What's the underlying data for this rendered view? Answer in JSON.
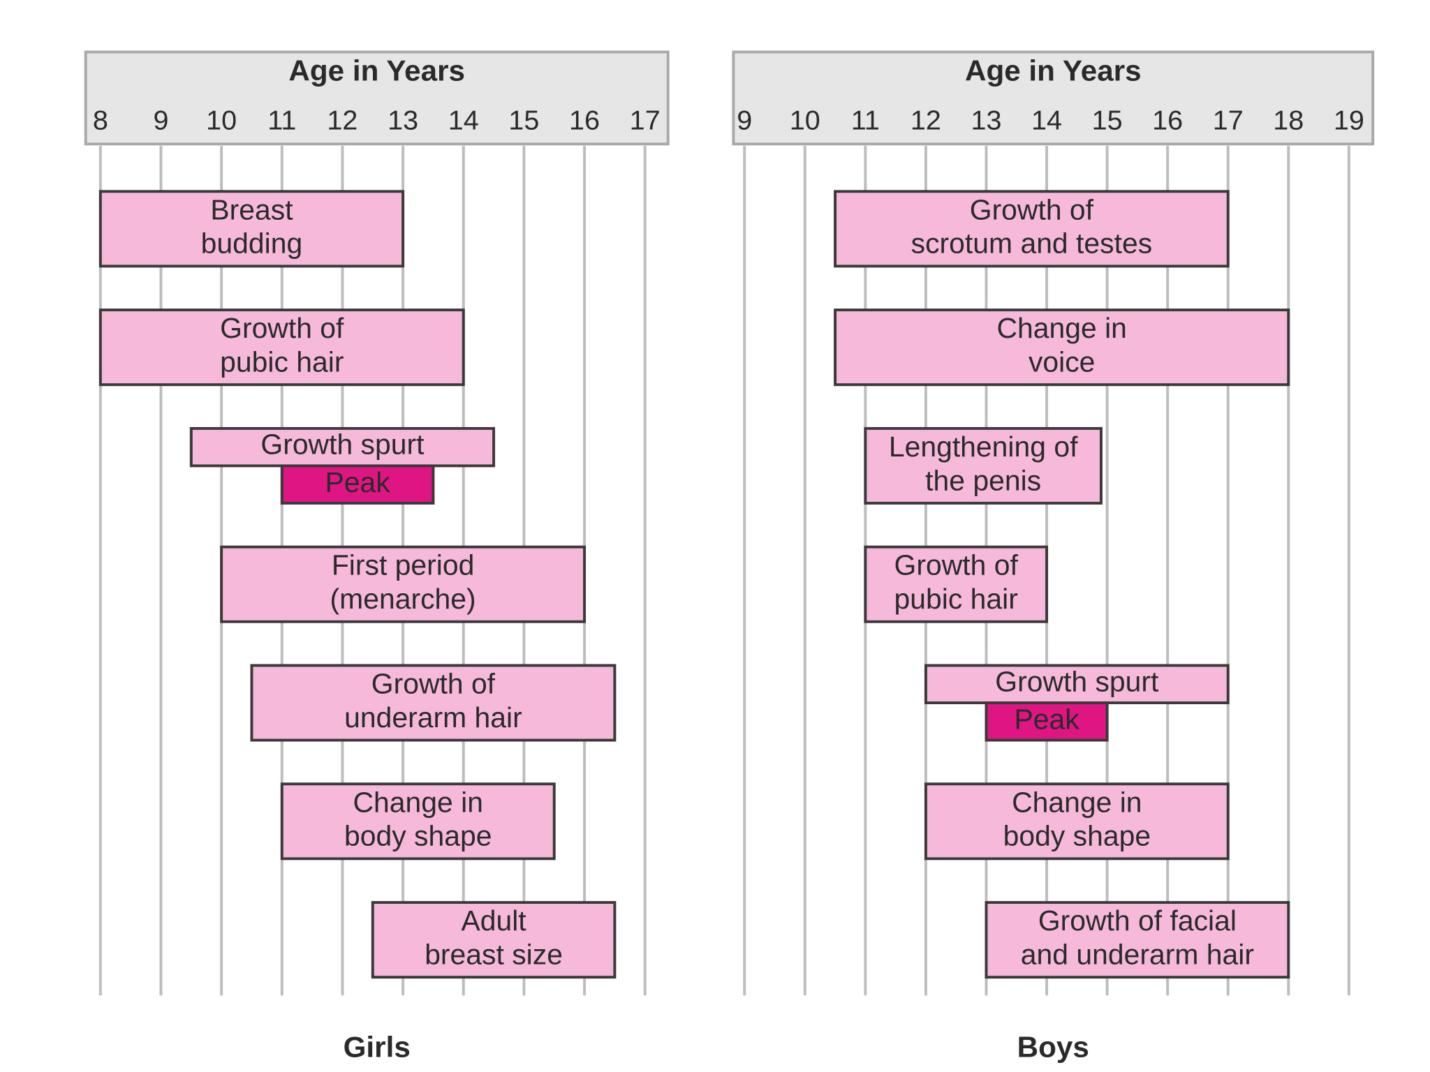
{
  "chart_data": [
    {
      "type": "gantt",
      "title": "Age in Years",
      "xlabel": "Girls",
      "xlim": [
        8,
        17
      ],
      "xticks": [
        8,
        9,
        10,
        11,
        12,
        13,
        14,
        15,
        16,
        17
      ],
      "grid": true,
      "color": "#f6b9da",
      "peak_color": "#df1583",
      "tasks": [
        {
          "label": [
            "Breast",
            "budding"
          ],
          "start": 8,
          "end": 13
        },
        {
          "label": [
            "Growth of",
            "pubic hair"
          ],
          "start": 8,
          "end": 14
        },
        {
          "label": [
            "Growth spurt"
          ],
          "start": 9.5,
          "end": 14.5,
          "peak": {
            "label": "Peak",
            "start": 11,
            "end": 13.5
          }
        },
        {
          "label": [
            "First period",
            "(menarche)"
          ],
          "start": 10,
          "end": 16
        },
        {
          "label": [
            "Growth of",
            "underarm hair"
          ],
          "start": 10.5,
          "end": 16.5
        },
        {
          "label": [
            "Change in",
            "body shape"
          ],
          "start": 11,
          "end": 15.5
        },
        {
          "label": [
            "Adult",
            "breast size"
          ],
          "start": 12.5,
          "end": 16.5
        }
      ]
    },
    {
      "type": "gantt",
      "title": "Age in Years",
      "xlabel": "Boys",
      "xlim": [
        9,
        19
      ],
      "xticks": [
        9,
        10,
        11,
        12,
        13,
        14,
        15,
        16,
        17,
        18,
        19
      ],
      "grid": true,
      "color": "#f6b9da",
      "peak_color": "#df1583",
      "tasks": [
        {
          "label": [
            "Growth of",
            "scrotum and testes"
          ],
          "start": 10.5,
          "end": 17
        },
        {
          "label": [
            "Change in",
            "voice"
          ],
          "start": 10.5,
          "end": 18
        },
        {
          "label": [
            "Lengthening of",
            "the penis"
          ],
          "start": 11,
          "end": 14.9
        },
        {
          "label": [
            "Growth of",
            "pubic hair"
          ],
          "start": 11,
          "end": 14
        },
        {
          "label": [
            "Growth spurt"
          ],
          "start": 12,
          "end": 17,
          "peak": {
            "label": "Peak",
            "start": 13,
            "end": 15
          }
        },
        {
          "label": [
            "Change in",
            "body shape"
          ],
          "start": 12,
          "end": 17
        },
        {
          "label": [
            "Growth of facial",
            "and underarm hair"
          ],
          "start": 13,
          "end": 18
        }
      ]
    }
  ]
}
